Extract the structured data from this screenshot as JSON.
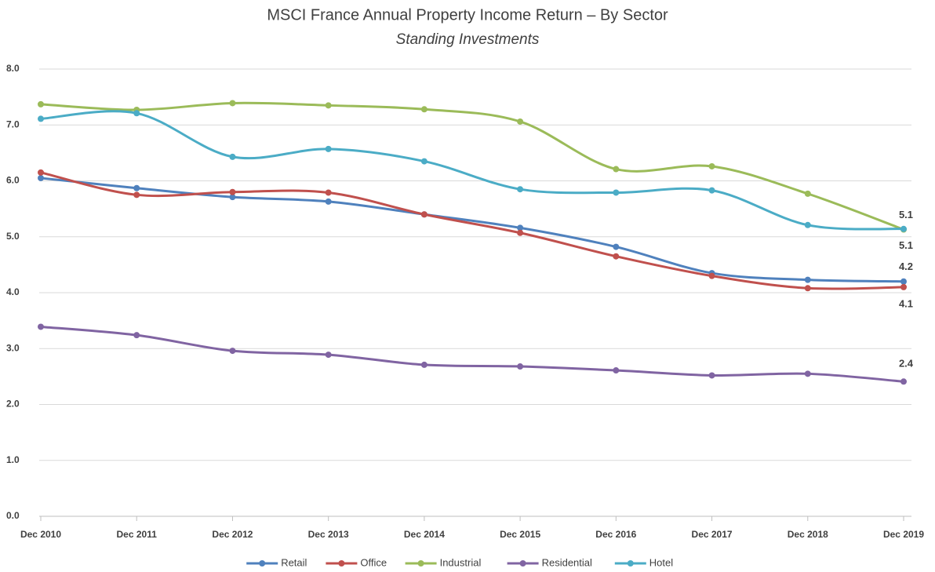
{
  "chart_data": {
    "type": "line",
    "title": "MSCI France Annual Property Income Return – By Sector",
    "subtitle": "Standing Investments",
    "categories": [
      "Dec 2010",
      "Dec 2011",
      "Dec 2012",
      "Dec 2013",
      "Dec 2014",
      "Dec 2015",
      "Dec 2016",
      "Dec 2017",
      "Dec 2018",
      "Dec 2019"
    ],
    "series": [
      {
        "name": "Retail",
        "color": "#4f81bd",
        "values": [
          6.05,
          5.87,
          5.71,
          5.63,
          5.4,
          5.16,
          4.82,
          4.35,
          4.23,
          4.2
        ],
        "value_labels": [
          null,
          null,
          null,
          null,
          null,
          null,
          null,
          null,
          null,
          "4.2"
        ]
      },
      {
        "name": "Office",
        "color": "#c0504d",
        "values": [
          6.15,
          5.75,
          5.8,
          5.79,
          5.4,
          5.07,
          4.65,
          4.3,
          4.08,
          4.1
        ],
        "value_labels": [
          null,
          null,
          null,
          null,
          null,
          null,
          null,
          null,
          null,
          "4.1"
        ]
      },
      {
        "name": "Industrial",
        "color": "#9bbb59",
        "values": [
          7.37,
          7.27,
          7.39,
          7.35,
          7.28,
          7.06,
          6.21,
          6.26,
          5.77,
          5.13
        ],
        "value_labels": [
          null,
          null,
          null,
          null,
          null,
          null,
          null,
          null,
          null,
          "5.1"
        ]
      },
      {
        "name": "Residential",
        "color": "#8064a2",
        "values": [
          3.39,
          3.24,
          2.96,
          2.89,
          2.71,
          2.68,
          2.61,
          2.52,
          2.55,
          2.41
        ],
        "value_labels": [
          null,
          null,
          null,
          null,
          null,
          null,
          null,
          null,
          null,
          "2.4"
        ]
      },
      {
        "name": "Hotel",
        "color": "#4bacc6",
        "values": [
          7.11,
          7.21,
          6.43,
          6.57,
          6.35,
          5.85,
          5.79,
          5.83,
          5.21,
          5.14
        ],
        "value_labels": [
          null,
          null,
          null,
          null,
          null,
          null,
          null,
          null,
          null,
          "5.1"
        ]
      }
    ],
    "ylim": [
      0,
      8
    ],
    "yticks": [
      {
        "value": 0,
        "label": "0.0"
      },
      {
        "value": 1,
        "label": "1.0"
      },
      {
        "value": 2,
        "label": "2.0"
      },
      {
        "value": 3,
        "label": "3.0"
      },
      {
        "value": 4,
        "label": "4.0"
      },
      {
        "value": 5,
        "label": "5.0"
      },
      {
        "value": 6,
        "label": "6.0"
      },
      {
        "value": 7,
        "label": "7.0"
      },
      {
        "value": 8,
        "label": "8.0"
      }
    ],
    "grid": true,
    "smooth": true,
    "legend": "bottom"
  }
}
